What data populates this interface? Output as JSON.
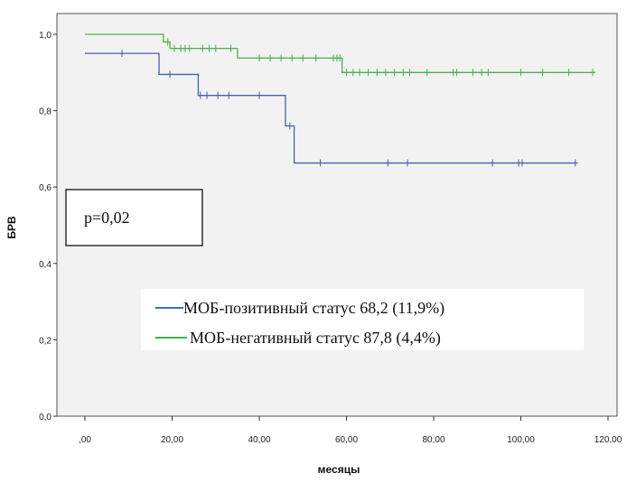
{
  "chart_data": {
    "type": "line",
    "subtype": "kaplan-meier",
    "xlabel": "месяцы",
    "ylabel": "БРВ",
    "xlim": [
      0,
      120
    ],
    "ylim": [
      0,
      1.0
    ],
    "x_ticks": [
      {
        "value": 0,
        "label": ",00"
      },
      {
        "value": 20,
        "label": "20,00"
      },
      {
        "value": 40,
        "label": "40,00"
      },
      {
        "value": 60,
        "label": "60,00"
      },
      {
        "value": 80,
        "label": "80,00"
      },
      {
        "value": 100,
        "label": "100,00"
      },
      {
        "value": 120,
        "label": "120,00"
      }
    ],
    "y_ticks": [
      {
        "value": 0.0,
        "label": "0,0"
      },
      {
        "value": 0.2,
        "label": "0,2"
      },
      {
        "value": 0.4,
        "label": "0,4"
      },
      {
        "value": 0.6,
        "label": "0,6"
      },
      {
        "value": 0.8,
        "label": "0,8"
      },
      {
        "value": 1.0,
        "label": "1,0"
      }
    ],
    "grid": false,
    "annotation": "p=0,02",
    "legend_position": "lower-right",
    "series": [
      {
        "name": "МОБ-позитивный статус 68,2 (11,9%)",
        "color": "#4a5fa8",
        "steps": [
          [
            0,
            0.95
          ],
          [
            17,
            0.895
          ],
          [
            26,
            0.84
          ],
          [
            46,
            0.76
          ],
          [
            48,
            0.663
          ],
          [
            113,
            0.663
          ]
        ],
        "censored": [
          [
            8.5,
            0.95
          ],
          [
            19.5,
            0.895
          ],
          [
            26.5,
            0.84
          ],
          [
            28,
            0.84
          ],
          [
            30.5,
            0.84
          ],
          [
            33,
            0.84
          ],
          [
            40,
            0.84
          ],
          [
            47,
            0.76
          ],
          [
            54,
            0.663
          ],
          [
            69.5,
            0.663
          ],
          [
            74,
            0.663
          ],
          [
            93.5,
            0.663
          ],
          [
            99.5,
            0.663
          ],
          [
            100.3,
            0.663
          ],
          [
            112.5,
            0.663
          ]
        ]
      },
      {
        "name": "МОБ-негативный статус 87,8 (4,4%)",
        "color": "#4cb04c",
        "steps": [
          [
            0,
            1.0
          ],
          [
            18,
            0.98
          ],
          [
            19.5,
            0.963
          ],
          [
            35,
            0.938
          ],
          [
            59,
            0.9
          ],
          [
            117,
            0.9
          ]
        ],
        "censored": [
          [
            19,
            0.98
          ],
          [
            20.5,
            0.963
          ],
          [
            22,
            0.963
          ],
          [
            23,
            0.963
          ],
          [
            24,
            0.963
          ],
          [
            27,
            0.963
          ],
          [
            28.5,
            0.963
          ],
          [
            30,
            0.963
          ],
          [
            33.5,
            0.963
          ],
          [
            40,
            0.938
          ],
          [
            42.5,
            0.938
          ],
          [
            45,
            0.938
          ],
          [
            47.5,
            0.938
          ],
          [
            50,
            0.938
          ],
          [
            53,
            0.938
          ],
          [
            57,
            0.938
          ],
          [
            57.8,
            0.938
          ],
          [
            58.5,
            0.938
          ],
          [
            60,
            0.9
          ],
          [
            61.5,
            0.9
          ],
          [
            63,
            0.9
          ],
          [
            65,
            0.9
          ],
          [
            67,
            0.9
          ],
          [
            69,
            0.9
          ],
          [
            71,
            0.9
          ],
          [
            73,
            0.9
          ],
          [
            74.5,
            0.9
          ],
          [
            78.5,
            0.9
          ],
          [
            84.5,
            0.9
          ],
          [
            85.3,
            0.9
          ],
          [
            89,
            0.9
          ],
          [
            91,
            0.9
          ],
          [
            92.5,
            0.9
          ],
          [
            100,
            0.9
          ],
          [
            105,
            0.9
          ],
          [
            111,
            0.9
          ],
          [
            116.5,
            0.9
          ]
        ]
      }
    ]
  }
}
